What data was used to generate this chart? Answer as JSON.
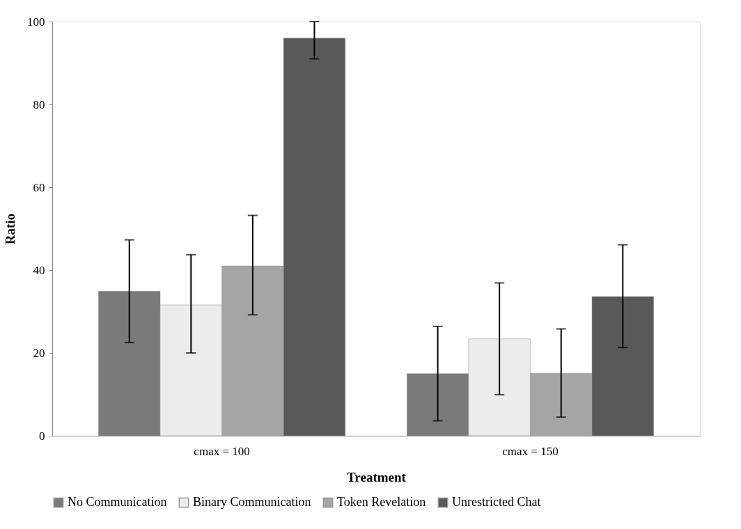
{
  "chart_data": {
    "type": "bar",
    "xlabel": "Treatment",
    "ylabel": "Ratio",
    "categories": [
      "cmax = 100",
      "cmax = 150"
    ],
    "series": [
      {
        "name": "No Communication",
        "color": "#7a7a7a",
        "values": [
          34.9,
          15.0
        ],
        "errors": [
          [
            22.5,
            47.3
          ],
          [
            3.6,
            26.4
          ]
        ]
      },
      {
        "name": "Binary Communication",
        "color": "#ececec",
        "values": [
          31.6,
          23.4
        ],
        "errors": [
          [
            20.0,
            43.7
          ],
          [
            9.9,
            36.9
          ]
        ]
      },
      {
        "name": "Token Revelation",
        "color": "#a5a5a5",
        "values": [
          41.0,
          15.1
        ],
        "errors": [
          [
            29.2,
            53.2
          ],
          [
            4.5,
            25.8
          ]
        ]
      },
      {
        "name": "Unrestricted Chat",
        "color": "#595959",
        "values": [
          96.0,
          33.6
        ],
        "errors": [
          [
            91.0,
            100
          ],
          [
            21.3,
            46.1
          ]
        ]
      }
    ],
    "ylim": [
      0,
      100
    ],
    "yticks": [
      0,
      20,
      40,
      60,
      80,
      100
    ],
    "grid": false,
    "legend": "bottom"
  }
}
